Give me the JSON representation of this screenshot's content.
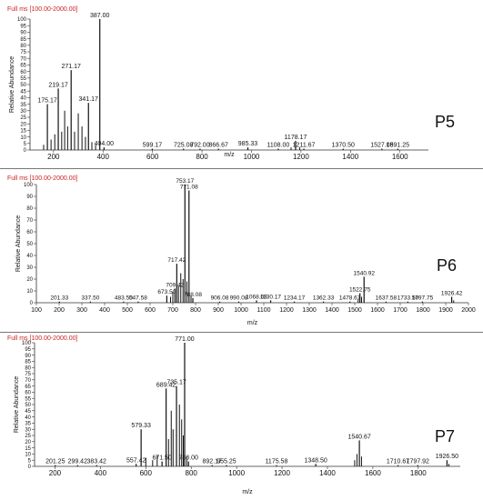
{
  "colors": {
    "header": "#cc2222",
    "ink": "#111111",
    "axis": "#333333",
    "divider": "#777777"
  },
  "panels": [
    {
      "header": "Full ms [100.00-2000.00]",
      "sample": "P5",
      "ylabel": "Relative Abundance",
      "xlabel": "m/z",
      "chart_data": {
        "type": "bar",
        "x_ticks": [
          200,
          400,
          600,
          800,
          1000,
          1200,
          1400,
          1600
        ],
        "y_ticks": [
          0,
          5,
          10,
          15,
          20,
          25,
          30,
          35,
          40,
          45,
          50,
          55,
          60,
          65,
          70,
          75,
          80,
          85,
          90,
          95,
          100
        ],
        "xlim": [
          105,
          1715
        ],
        "ylim": [
          0,
          100
        ],
        "labeled_peaks": [
          {
            "mz": 175.17,
            "label": "175.17",
            "intensity": 35
          },
          {
            "mz": 219.17,
            "label": "219.17",
            "intensity": 47
          },
          {
            "mz": 271.17,
            "label": "271.17",
            "intensity": 61
          },
          {
            "mz": 341.17,
            "label": "341.17",
            "intensity": 36
          },
          {
            "mz": 387.0,
            "label": "387.00",
            "intensity": 100
          },
          {
            "mz": 404.0,
            "label": "404.00",
            "intensity": 2
          },
          {
            "mz": 599.17,
            "label": "599.17",
            "intensity": 1
          },
          {
            "mz": 725.08,
            "label": "725.08",
            "intensity": 1
          },
          {
            "mz": 792.0,
            "label": "792.00",
            "intensity": 1
          },
          {
            "mz": 866.67,
            "label": "866.67",
            "intensity": 1
          },
          {
            "mz": 985.33,
            "label": "985.33",
            "intensity": 2
          },
          {
            "mz": 1108.0,
            "label": "1108.00",
            "intensity": 1
          },
          {
            "mz": 1178.17,
            "label": "1178.17",
            "intensity": 7
          },
          {
            "mz": 1211.67,
            "label": "1211.67",
            "intensity": 1
          },
          {
            "mz": 1370.5,
            "label": "1370.50",
            "intensity": 1
          },
          {
            "mz": 1527.08,
            "label": "1527.08",
            "intensity": 1
          },
          {
            "mz": 1591.25,
            "label": "1591.25",
            "intensity": 1
          }
        ],
        "minor_peaks": [
          {
            "mz": 160,
            "intensity": 4
          },
          {
            "mz": 190,
            "intensity": 8
          },
          {
            "mz": 205,
            "intensity": 12
          },
          {
            "mz": 233,
            "intensity": 14
          },
          {
            "mz": 245,
            "intensity": 30
          },
          {
            "mz": 257,
            "intensity": 18
          },
          {
            "mz": 285,
            "intensity": 14
          },
          {
            "mz": 300,
            "intensity": 28
          },
          {
            "mz": 315,
            "intensity": 18
          },
          {
            "mz": 329,
            "intensity": 10
          },
          {
            "mz": 355,
            "intensity": 6
          },
          {
            "mz": 370,
            "intensity": 4
          },
          {
            "mz": 1160,
            "intensity": 2
          },
          {
            "mz": 1195,
            "intensity": 2
          }
        ]
      }
    },
    {
      "header": "Full ms [100.00-2000.00]",
      "sample": "P6",
      "ylabel": "Relative Abundance",
      "xlabel": "m/z",
      "chart_data": {
        "type": "bar",
        "x_ticks": [
          100,
          200,
          300,
          400,
          500,
          600,
          700,
          800,
          900,
          1000,
          1100,
          1200,
          1300,
          1400,
          1500,
          1600,
          1700,
          1800,
          1900,
          2000
        ],
        "y_ticks": [
          0,
          10,
          20,
          30,
          40,
          50,
          60,
          70,
          80,
          90,
          100
        ],
        "xlim": [
          100,
          2000
        ],
        "ylim": [
          0,
          100
        ],
        "labeled_peaks": [
          {
            "mz": 201.33,
            "label": "201.33",
            "intensity": 1
          },
          {
            "mz": 337.5,
            "label": "337.50",
            "intensity": 1
          },
          {
            "mz": 483.5,
            "label": "483.50",
            "intensity": 1
          },
          {
            "mz": 547.58,
            "label": "547.58",
            "intensity": 1
          },
          {
            "mz": 673.5,
            "label": "673.50",
            "intensity": 6
          },
          {
            "mz": 709.42,
            "label": "709.42",
            "intensity": 12
          },
          {
            "mz": 717.42,
            "label": "717.42",
            "intensity": 33
          },
          {
            "mz": 753.17,
            "label": "753.17",
            "intensity": 100
          },
          {
            "mz": 771.08,
            "label": "771.08",
            "intensity": 95
          },
          {
            "mz": 788.08,
            "label": "788.08",
            "intensity": 4
          },
          {
            "mz": 906.08,
            "label": "906.08",
            "intensity": 1
          },
          {
            "mz": 990.08,
            "label": "990.08",
            "intensity": 1
          },
          {
            "mz": 1068.08,
            "label": "1068.08",
            "intensity": 2
          },
          {
            "mz": 1130.17,
            "label": "1130.17",
            "intensity": 2
          },
          {
            "mz": 1234.17,
            "label": "1234.17",
            "intensity": 1
          },
          {
            "mz": 1362.33,
            "label": "1362.33",
            "intensity": 1
          },
          {
            "mz": 1478.67,
            "label": "1478.67",
            "intensity": 1
          },
          {
            "mz": 1522.75,
            "label": "1522.75",
            "intensity": 8
          },
          {
            "mz": 1540.92,
            "label": "1540.92",
            "intensity": 22
          },
          {
            "mz": 1637.58,
            "label": "1637.58",
            "intensity": 1
          },
          {
            "mz": 1733.5,
            "label": "1733.50",
            "intensity": 1
          },
          {
            "mz": 1797.75,
            "label": "1797.75",
            "intensity": 1
          },
          {
            "mz": 1926.42,
            "label": "1926.42",
            "intensity": 5
          }
        ],
        "minor_peaks": [
          {
            "mz": 690,
            "intensity": 5
          },
          {
            "mz": 700,
            "intensity": 9
          },
          {
            "mz": 725,
            "intensity": 14
          },
          {
            "mz": 735,
            "intensity": 25
          },
          {
            "mz": 745,
            "intensity": 20
          },
          {
            "mz": 762,
            "intensity": 18
          },
          {
            "mz": 780,
            "intensity": 6
          },
          {
            "mz": 1530,
            "intensity": 5
          },
          {
            "mz": 1515,
            "intensity": 3
          },
          {
            "mz": 1935,
            "intensity": 2
          }
        ]
      }
    },
    {
      "header": "Full ms [100.00-2000.00]",
      "sample": "P7",
      "ylabel": "Relative Abundance",
      "xlabel": "m/z",
      "chart_data": {
        "type": "bar",
        "x_ticks": [
          200,
          400,
          600,
          800,
          1000,
          1200,
          1400,
          1600,
          1800
        ],
        "y_ticks": [
          0,
          5,
          10,
          15,
          20,
          25,
          30,
          35,
          40,
          45,
          50,
          55,
          60,
          65,
          70,
          75,
          80,
          85,
          90,
          95,
          100
        ],
        "xlim": [
          110,
          1985
        ],
        "ylim": [
          0,
          100
        ],
        "labeled_peaks": [
          {
            "mz": 201.25,
            "label": "201.25",
            "intensity": 1
          },
          {
            "mz": 299.42,
            "label": "299.42",
            "intensity": 1
          },
          {
            "mz": 383.42,
            "label": "383.42",
            "intensity": 1
          },
          {
            "mz": 557.42,
            "label": "557.42",
            "intensity": 2
          },
          {
            "mz": 579.33,
            "label": "579.33",
            "intensity": 30
          },
          {
            "mz": 671.5,
            "label": "671.50",
            "intensity": 4
          },
          {
            "mz": 689.42,
            "label": "689.42",
            "intensity": 63
          },
          {
            "mz": 735.17,
            "label": "735.17",
            "intensity": 65
          },
          {
            "mz": 771.0,
            "label": "771.00",
            "intensity": 100
          },
          {
            "mz": 788.0,
            "label": "788.00",
            "intensity": 4
          },
          {
            "mz": 892.17,
            "label": "892.17",
            "intensity": 1
          },
          {
            "mz": 955.25,
            "label": "955.25",
            "intensity": 1
          },
          {
            "mz": 1175.58,
            "label": "1175.58",
            "intensity": 1
          },
          {
            "mz": 1348.5,
            "label": "1348.50",
            "intensity": 2
          },
          {
            "mz": 1540.67,
            "label": "1540.67",
            "intensity": 21
          },
          {
            "mz": 1710.67,
            "label": "1710.67",
            "intensity": 1
          },
          {
            "mz": 1797.92,
            "label": "1797.92",
            "intensity": 1
          },
          {
            "mz": 1926.5,
            "label": "1926.50",
            "intensity": 5
          }
        ],
        "minor_peaks": [
          {
            "mz": 600,
            "intensity": 7
          },
          {
            "mz": 630,
            "intensity": 5
          },
          {
            "mz": 650,
            "intensity": 9
          },
          {
            "mz": 700,
            "intensity": 22
          },
          {
            "mz": 712,
            "intensity": 45
          },
          {
            "mz": 720,
            "intensity": 30
          },
          {
            "mz": 748,
            "intensity": 50
          },
          {
            "mz": 758,
            "intensity": 38
          },
          {
            "mz": 765,
            "intensity": 25
          },
          {
            "mz": 780,
            "intensity": 8
          },
          {
            "mz": 1520,
            "intensity": 5
          },
          {
            "mz": 1530,
            "intensity": 10
          },
          {
            "mz": 1550,
            "intensity": 8
          },
          {
            "mz": 1935,
            "intensity": 2
          }
        ]
      }
    }
  ]
}
